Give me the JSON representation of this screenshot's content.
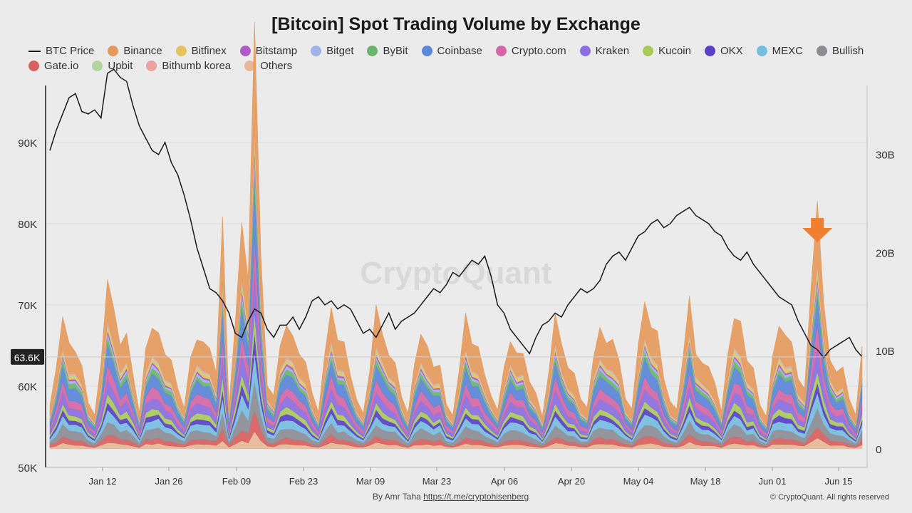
{
  "chart_data": {
    "type": "area",
    "title": "[Bitcoin] Spot Trading Volume by Exchange",
    "x_ticks": [
      "Jan 12",
      "Jan 26",
      "Feb 09",
      "Feb 23",
      "Mar 09",
      "Mar 23",
      "Apr 06",
      "Apr 20",
      "May 04",
      "May 18",
      "Jun 01",
      "Jun 15"
    ],
    "left_axis": {
      "ticks": [
        "50K",
        "60K",
        "70K",
        "80K",
        "90K"
      ],
      "range": [
        50000,
        97000
      ]
    },
    "right_axis": {
      "ticks": [
        "0",
        "10B",
        "20B",
        "30B"
      ],
      "range": [
        0,
        37000000000
      ]
    },
    "current_price_label": "63.6K",
    "price_line": {
      "name": "BTC Price",
      "color": "#1a1a1a",
      "values": [
        89000,
        91500,
        93500,
        95500,
        96000,
        93800,
        93500,
        94000,
        93000,
        98500,
        99000,
        98000,
        97500,
        94500,
        92000,
        90500,
        89000,
        88500,
        90000,
        87500,
        86000,
        83500,
        80500,
        77000,
        74500,
        72000,
        71500,
        70500,
        69000,
        66500,
        66000,
        68000,
        69500,
        69000,
        67000,
        66000,
        67500,
        67500,
        68500,
        67000,
        68500,
        70500,
        71000,
        70000,
        70500,
        69500,
        70000,
        69500,
        68000,
        66500,
        67000,
        66000,
        67500,
        69000,
        67000,
        68000,
        68500,
        69000,
        70000,
        71000,
        72000,
        71500,
        72500,
        74000,
        73500,
        74500,
        75500,
        75000,
        76000,
        73500,
        70000,
        69000,
        67000,
        66000,
        65000,
        64000,
        66000,
        67500,
        68000,
        69000,
        68500,
        70000,
        71000,
        72000,
        71500,
        72000,
        73000,
        75000,
        76000,
        76500,
        75500,
        77000,
        78500,
        79000,
        80000,
        80500,
        79500,
        80000,
        81000,
        81500,
        82000,
        81000,
        80500,
        80000,
        79000,
        78500,
        77000,
        76000,
        75500,
        76500,
        75000,
        74000,
        73000,
        72000,
        71000,
        70500,
        70000,
        68000,
        66500,
        65000,
        64500,
        63500,
        64500,
        65000,
        65500,
        66000,
        64500,
        63600
      ]
    },
    "stack_order": [
      "Others",
      "Gate.io",
      "Bullish",
      "MEXC",
      "OKX",
      "Kucoin",
      "Kraken",
      "Crypto.com",
      "Coinbase",
      "ByBit",
      "Bitget",
      "Bitstamp",
      "Bitfinex",
      "Upbit",
      "Bithumb korea",
      "Binance"
    ],
    "series": [
      {
        "name": "Binance",
        "color": "#e59a5c"
      },
      {
        "name": "Bitfinex",
        "color": "#e6c35c"
      },
      {
        "name": "Bitstamp",
        "color": "#b159c9"
      },
      {
        "name": "Bitget",
        "color": "#9fb3e8"
      },
      {
        "name": "ByBit",
        "color": "#6ab56a"
      },
      {
        "name": "Coinbase",
        "color": "#5b86d9"
      },
      {
        "name": "Crypto.com",
        "color": "#d467a5"
      },
      {
        "name": "Kraken",
        "color": "#8a6fe0"
      },
      {
        "name": "Kucoin",
        "color": "#a9c95b"
      },
      {
        "name": "OKX",
        "color": "#5a3fc8"
      },
      {
        "name": "MEXC",
        "color": "#76bde0"
      },
      {
        "name": "Bullish",
        "color": "#8c8c95"
      },
      {
        "name": "Gate.io",
        "color": "#d96060"
      },
      {
        "name": "Upbit",
        "color": "#b4d49e"
      },
      {
        "name": "Bithumb korea",
        "color": "#e8a3a0"
      },
      {
        "name": "Others",
        "color": "#e6b898"
      }
    ],
    "highlight": {
      "label": "arrow",
      "color": "#f08030",
      "x_index": 120
    },
    "watermark": "CryptoQuant"
  },
  "legend": [
    {
      "label": "BTC Price",
      "color": "#1a1a1a",
      "kind": "line"
    },
    {
      "label": "Binance",
      "color": "#e59a5c"
    },
    {
      "label": "Bitfinex",
      "color": "#e6c35c"
    },
    {
      "label": "Bitstamp",
      "color": "#b159c9"
    },
    {
      "label": "Bitget",
      "color": "#9fb3e8"
    },
    {
      "label": "ByBit",
      "color": "#6ab56a"
    },
    {
      "label": "Coinbase",
      "color": "#5b86d9"
    },
    {
      "label": "Crypto.com",
      "color": "#d467a5"
    },
    {
      "label": "Kraken",
      "color": "#8a6fe0"
    },
    {
      "label": "Kucoin",
      "color": "#a9c95b"
    },
    {
      "label": "OKX",
      "color": "#5a3fc8"
    },
    {
      "label": "MEXC",
      "color": "#76bde0"
    },
    {
      "label": "Bullish",
      "color": "#8c8c95"
    },
    {
      "label": "Gate.io",
      "color": "#d96060"
    },
    {
      "label": "Upbit",
      "color": "#b4d49e"
    },
    {
      "label": "Bithumb korea",
      "color": "#e8a3a0"
    },
    {
      "label": "Others",
      "color": "#e6b898"
    }
  ],
  "footer": {
    "author": "By Amr Taha",
    "link": "https://t.me/cryptohisenberg",
    "copyright": "© CryptoQuant. All rights reserved"
  }
}
